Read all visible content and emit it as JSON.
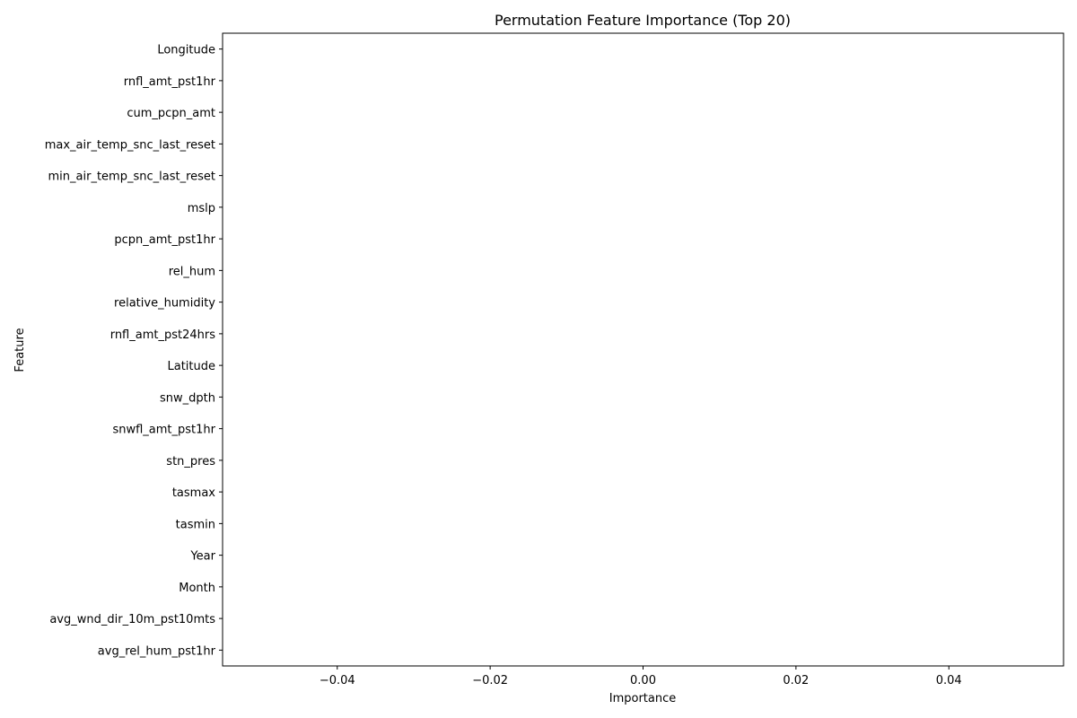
{
  "chart_data": {
    "type": "bar",
    "orientation": "horizontal",
    "title": "Permutation Feature Importance (Top 20)",
    "xlabel": "Importance",
    "ylabel": "Feature",
    "xlim": [
      -0.055,
      0.055
    ],
    "xticks": [
      -0.04,
      -0.02,
      0.0,
      0.02,
      0.04
    ],
    "xtick_labels": [
      "−0.04",
      "−0.02",
      "0.00",
      "0.02",
      "0.04"
    ],
    "categories": [
      "Longitude",
      "rnfl_amt_pst1hr",
      "cum_pcpn_amt",
      "max_air_temp_snc_last_reset",
      "min_air_temp_snc_last_reset",
      "mslp",
      "pcpn_amt_pst1hr",
      "rel_hum",
      "relative_humidity",
      "rnfl_amt_pst24hrs",
      "Latitude",
      "snw_dpth",
      "snwfl_amt_pst1hr",
      "stn_pres",
      "tasmax",
      "tasmin",
      "Year",
      "Month",
      "avg_wnd_dir_10m_pst10mts",
      "avg_rel_hum_pst1hr"
    ],
    "values": [
      0,
      0,
      0,
      0,
      0,
      0,
      0,
      0,
      0,
      0,
      0,
      0,
      0,
      0,
      0,
      0,
      0,
      0,
      0,
      0
    ],
    "grid": false,
    "legend": "none"
  }
}
